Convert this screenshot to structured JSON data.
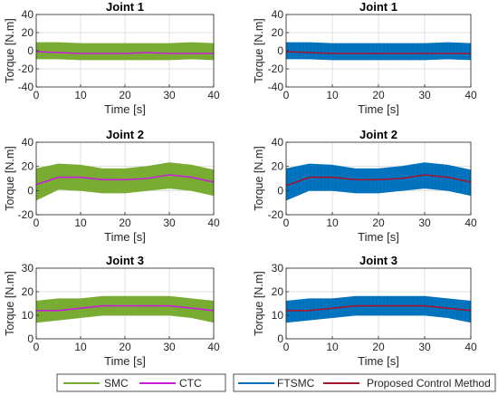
{
  "colors": {
    "smc": "#77AC30",
    "ctc": "#C81EDC",
    "ftsmc": "#0072BD",
    "proposed": "#A2142F",
    "axis": "#262626",
    "grid": "#D9D9D9"
  },
  "legends": {
    "left": [
      {
        "label": "SMC",
        "color_key": "smc"
      },
      {
        "label": "CTC",
        "color_key": "ctc"
      }
    ],
    "right": [
      {
        "label": "FTSMC",
        "color_key": "ftsmc"
      },
      {
        "label": "Proposed Control Method",
        "color_key": "proposed"
      }
    ]
  },
  "chart_data": [
    {
      "type": "area",
      "title": "Joint 1",
      "xlabel": "Time [s]",
      "ylabel": "Torque [N.m]",
      "xlim": [
        0,
        40
      ],
      "ylim": [
        -40,
        40
      ],
      "xticks": [
        0,
        10,
        20,
        30,
        40
      ],
      "yticks": [
        -40,
        -20,
        0,
        20,
        40
      ],
      "grid": true,
      "x": [
        0,
        5,
        10,
        15,
        20,
        25,
        30,
        35,
        40
      ],
      "series": [
        {
          "name": "SMC",
          "kind": "band",
          "color_key": "smc",
          "lower": [
            -9,
            -9,
            -10,
            -10,
            -10,
            -10,
            -10,
            -9,
            -10
          ],
          "upper": [
            9,
            9,
            8,
            8,
            8,
            8,
            8,
            9,
            8
          ]
        },
        {
          "name": "CTC",
          "kind": "line",
          "color_key": "ctc",
          "values": [
            -1,
            -2,
            -3,
            -3,
            -3,
            -2,
            -3,
            -3,
            -3
          ]
        }
      ]
    },
    {
      "type": "area",
      "title": "Joint 1",
      "xlabel": "Time [s]",
      "ylabel": "Torque [N.m]",
      "xlim": [
        0,
        40
      ],
      "ylim": [
        -40,
        40
      ],
      "xticks": [
        0,
        10,
        20,
        30,
        40
      ],
      "yticks": [
        -40,
        -20,
        0,
        20,
        40
      ],
      "grid": true,
      "x": [
        0,
        5,
        10,
        15,
        20,
        25,
        30,
        35,
        40
      ],
      "series": [
        {
          "name": "FTSMC",
          "kind": "band",
          "color_key": "ftsmc",
          "lower": [
            -9,
            -9,
            -10,
            -10,
            -10,
            -10,
            -10,
            -9,
            -10
          ],
          "upper": [
            9,
            9,
            8,
            8,
            8,
            8,
            8,
            9,
            8
          ]
        },
        {
          "name": "Proposed Control Method",
          "kind": "line",
          "color_key": "proposed",
          "values": [
            -1,
            -2,
            -3,
            -3,
            -3,
            -3,
            -3,
            -3,
            -3
          ]
        }
      ]
    },
    {
      "type": "area",
      "title": "Joint 2",
      "xlabel": "Time [s]",
      "ylabel": "Torque [N.m]",
      "xlim": [
        0,
        40
      ],
      "ylim": [
        -20,
        40
      ],
      "xticks": [
        0,
        10,
        20,
        30,
        40
      ],
      "yticks": [
        -20,
        0,
        20,
        40
      ],
      "grid": true,
      "x": [
        0,
        5,
        10,
        15,
        20,
        25,
        30,
        35,
        40
      ],
      "series": [
        {
          "name": "SMC",
          "kind": "band",
          "color_key": "smc",
          "lower": [
            -8,
            1,
            0,
            -2,
            -2,
            0,
            2,
            0,
            -4
          ],
          "upper": [
            18,
            22,
            21,
            18,
            18,
            20,
            23,
            21,
            17
          ]
        },
        {
          "name": "CTC",
          "kind": "line",
          "color_key": "ctc",
          "values": [
            5,
            11,
            11,
            9,
            9,
            10,
            13,
            11,
            7
          ]
        }
      ]
    },
    {
      "type": "area",
      "title": "Joint 2",
      "xlabel": "Time [s]",
      "ylabel": "Torque [N.m]",
      "xlim": [
        0,
        40
      ],
      "ylim": [
        -20,
        40
      ],
      "xticks": [
        0,
        10,
        20,
        30,
        40
      ],
      "yticks": [
        -20,
        0,
        20,
        40
      ],
      "grid": true,
      "x": [
        0,
        5,
        10,
        15,
        20,
        25,
        30,
        35,
        40
      ],
      "series": [
        {
          "name": "FTSMC",
          "kind": "band",
          "color_key": "ftsmc",
          "lower": [
            -8,
            0,
            0,
            -2,
            -2,
            0,
            2,
            0,
            -4
          ],
          "upper": [
            18,
            22,
            21,
            18,
            18,
            20,
            23,
            21,
            17
          ]
        },
        {
          "name": "Proposed Control Method",
          "kind": "line",
          "color_key": "proposed",
          "values": [
            4,
            11,
            11,
            9,
            9,
            10,
            13,
            11,
            7
          ]
        }
      ]
    },
    {
      "type": "area",
      "title": "Joint 3",
      "xlabel": "Time [s]",
      "ylabel": "Torque [N.m]",
      "xlim": [
        0,
        40
      ],
      "ylim": [
        0,
        30
      ],
      "xticks": [
        0,
        10,
        20,
        30,
        40
      ],
      "yticks": [
        0,
        10,
        20,
        30
      ],
      "grid": true,
      "x": [
        0,
        5,
        10,
        15,
        20,
        25,
        30,
        35,
        40
      ],
      "series": [
        {
          "name": "SMC",
          "kind": "band",
          "color_key": "smc",
          "lower": [
            7,
            8,
            9,
            10,
            10,
            10,
            10,
            9,
            7
          ],
          "upper": [
            16,
            17,
            17,
            18,
            18,
            18,
            18,
            17,
            16
          ]
        },
        {
          "name": "CTC",
          "kind": "line",
          "color_key": "ctc",
          "values": [
            12,
            12,
            13,
            14,
            14,
            14,
            14,
            13,
            12
          ]
        }
      ]
    },
    {
      "type": "area",
      "title": "Joint 3",
      "xlabel": "Time [s]",
      "ylabel": "Torque [N.m]",
      "xlim": [
        0,
        40
      ],
      "ylim": [
        0,
        30
      ],
      "xticks": [
        0,
        10,
        20,
        30,
        40
      ],
      "yticks": [
        0,
        10,
        20,
        30
      ],
      "grid": true,
      "x": [
        0,
        5,
        10,
        15,
        20,
        25,
        30,
        35,
        40
      ],
      "series": [
        {
          "name": "FTSMC",
          "kind": "band",
          "color_key": "ftsmc",
          "lower": [
            7,
            8,
            9,
            10,
            10,
            10,
            10,
            9,
            7
          ],
          "upper": [
            16,
            17,
            17,
            18,
            18,
            18,
            18,
            17,
            16
          ]
        },
        {
          "name": "Proposed Control Method",
          "kind": "line",
          "color_key": "proposed",
          "values": [
            12,
            12,
            13,
            14,
            14,
            14,
            14,
            13,
            12
          ]
        }
      ]
    }
  ]
}
